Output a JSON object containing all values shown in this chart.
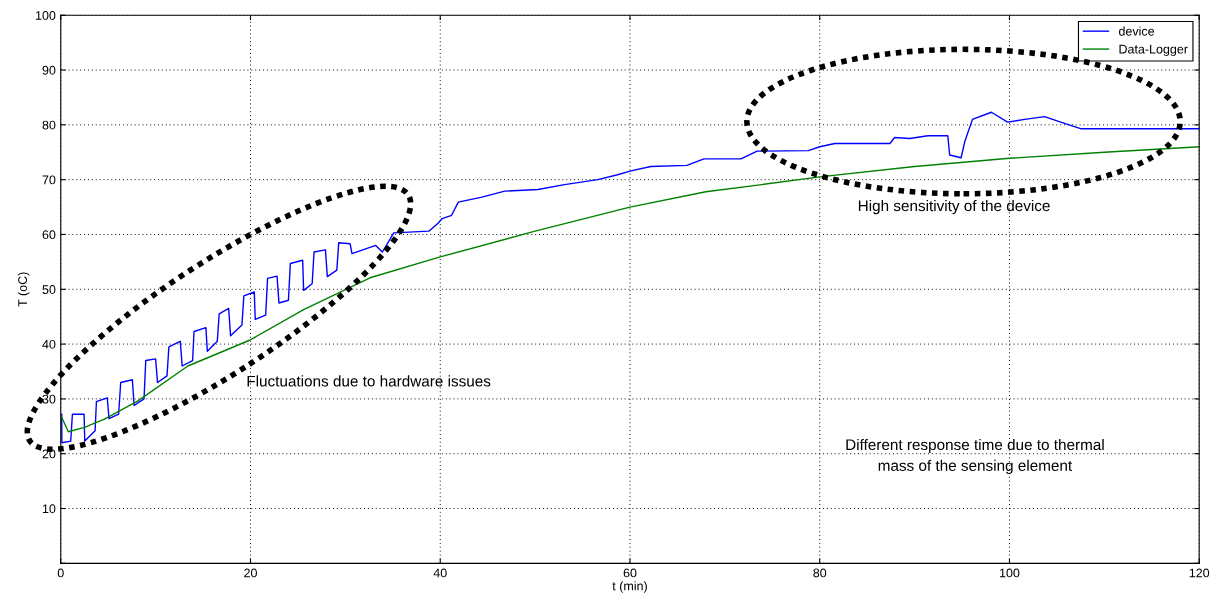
{
  "chart_data": {
    "type": "line",
    "xlabel": "t (min)",
    "ylabel": "T (oC)",
    "xlim": [
      0,
      120
    ],
    "xticks": [
      0,
      20,
      40,
      60,
      80,
      100,
      120
    ],
    "ylim": [
      0,
      100
    ],
    "yticks": [
      {
        "value": 0,
        "label": null
      },
      10,
      20,
      30,
      40,
      50,
      60,
      70,
      80,
      90,
      100
    ],
    "grid": true,
    "legend": "top right",
    "line_style": "solid",
    "series": [
      {
        "name": "device",
        "color": "#0000ff",
        "x": [
          0.1,
          0.12,
          1.05,
          1.23,
          2.46,
          2.53,
          3.62,
          3.76,
          4.9,
          5.09,
          6.1,
          6.32,
          7.55,
          7.73,
          8.78,
          8.96,
          10.0,
          10.2,
          11.2,
          11.4,
          12.6,
          12.8,
          13.9,
          14.05,
          15.3,
          15.45,
          16.5,
          16.7,
          17.7,
          17.9,
          19.1,
          19.3,
          20.4,
          20.5,
          21.6,
          21.8,
          22.8,
          23.0,
          24.0,
          24.2,
          25.5,
          25.6,
          26.5,
          26.7,
          27.9,
          28.1,
          29.1,
          29.3,
          30.5,
          30.7,
          33.2,
          33.9,
          35.1,
          38.8,
          39.8,
          40.2,
          41.2,
          41.9,
          44.4,
          46.8,
          50.3,
          53.1,
          56.6,
          58.7,
          60.1,
          62.2,
          66.0,
          67.8,
          71.7,
          73.4,
          78.8,
          80.0,
          81.6,
          87.4,
          87.9,
          89.5,
          91.4,
          93.5,
          93.7,
          94.9,
          95.3,
          96.1,
          98.1,
          99.8,
          101.6,
          103.7,
          105.4,
          107.5,
          112.5,
          120.0
        ],
        "values": [
          27.2,
          22,
          22.3,
          27.2,
          27.2,
          22.3,
          24.2,
          29.5,
          30.2,
          26.4,
          27.2,
          33,
          33.5,
          28.8,
          30,
          37,
          37.3,
          33,
          34.2,
          39.5,
          40.5,
          36,
          37,
          42.3,
          43,
          38.7,
          40.5,
          45.5,
          46.5,
          41.5,
          43.5,
          48.8,
          49.5,
          44.5,
          45.3,
          52,
          52.4,
          47.5,
          48,
          54.7,
          55.3,
          49.8,
          51,
          56.8,
          57.2,
          52.3,
          53.5,
          58.5,
          58.3,
          56.5,
          58,
          56.8,
          60.3,
          60.6,
          62.1,
          62.9,
          63.5,
          65.9,
          66.8,
          67.9,
          68.2,
          69.1,
          70,
          70.9,
          71.6,
          72.4,
          72.6,
          73.8,
          73.8,
          75.2,
          75.3,
          76,
          76.6,
          76.6,
          77.7,
          77.5,
          78,
          78,
          74.5,
          74,
          77,
          81,
          82.3,
          80.5,
          81,
          81.5,
          80.5,
          79.3,
          79.3,
          79.3
        ]
      },
      {
        "name": "Data-Logger",
        "color": "#008000",
        "x": [
          0,
          0.8,
          2.5,
          4.6,
          8.1,
          13.4,
          19.9,
          25.6,
          32.6,
          40,
          50,
          60,
          68,
          73.9,
          80,
          90,
          100,
          110,
          120
        ],
        "values": [
          27,
          24,
          24.8,
          26.3,
          29.6,
          36,
          40.7,
          46.3,
          52.1,
          55.9,
          60.6,
          65,
          67.8,
          69.1,
          70.5,
          72.4,
          73.9,
          75,
          76
        ]
      }
    ],
    "annotations": [
      "Fluctuations due to hardware issues",
      "High sensitivity of the device",
      "Different response time due to thermal\nmass of the sensing element"
    ]
  }
}
